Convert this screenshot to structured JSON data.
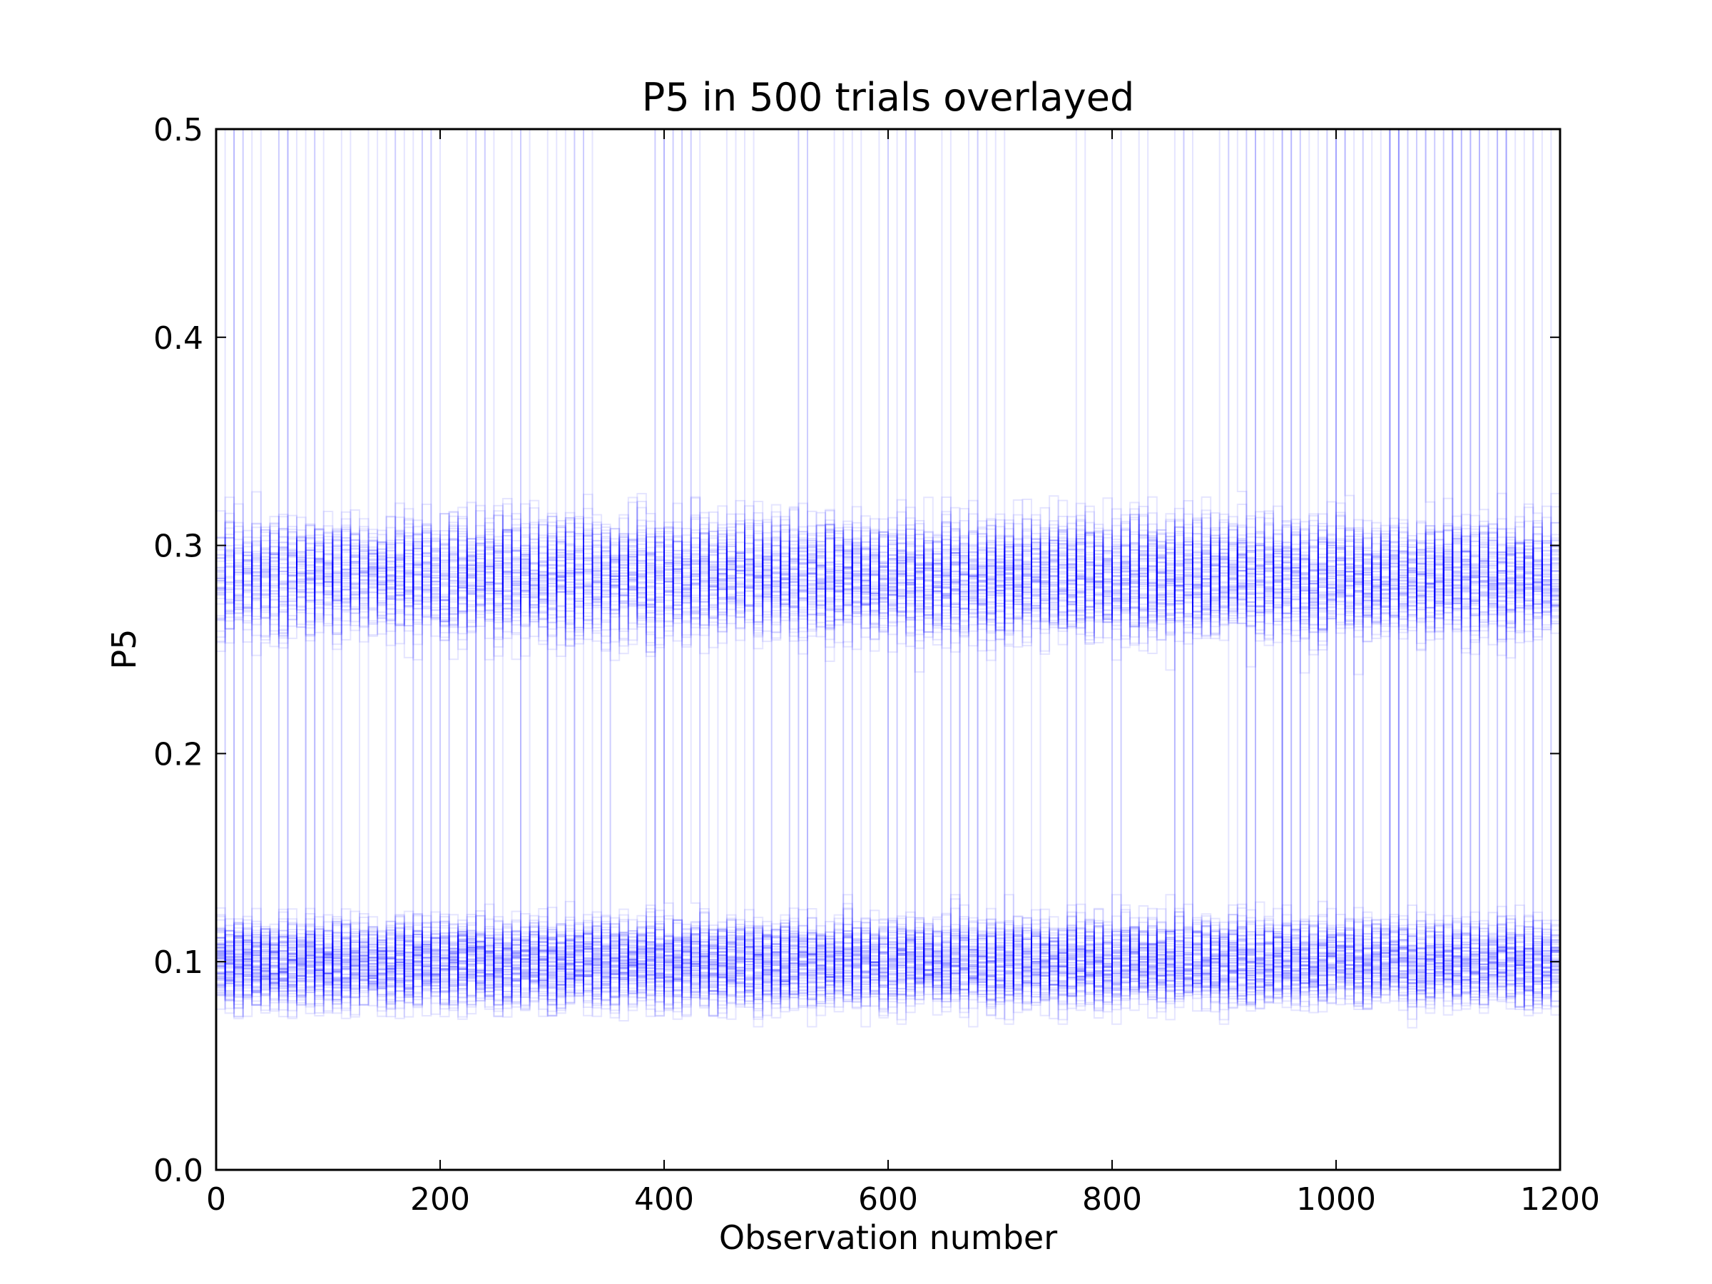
{
  "chart_data": {
    "type": "line",
    "title": "P5 in 500 trials overlayed",
    "xlabel": "Observation number",
    "ylabel": "P5",
    "xlim": [
      0,
      1200
    ],
    "ylim": [
      0.0,
      0.5
    ],
    "xticks": [
      0,
      200,
      400,
      600,
      800,
      1000,
      1200
    ],
    "xtick_labels": [
      "0",
      "200",
      "400",
      "600",
      "800",
      "1000",
      "1200"
    ],
    "yticks": [
      0.0,
      0.1,
      0.2,
      0.3,
      0.4,
      0.5
    ],
    "ytick_labels": [
      "0.0",
      "0.1",
      "0.2",
      "0.3",
      "0.4",
      "0.5"
    ],
    "grid": false,
    "legend": "none",
    "n_trials": 500,
    "drawstyle": "steps",
    "line_color": "#0000ff",
    "line_alpha": 0.1,
    "bands": [
      {
        "center": 0.1,
        "spread_min": 0.04,
        "spread_max": 0.165
      },
      {
        "center": 0.285,
        "spread_min": 0.21,
        "spread_max": 0.375
      }
    ],
    "series_summary": [
      {
        "name": "",
        "x": [
          0,
          100,
          200,
          300,
          400,
          500,
          600,
          700,
          800,
          900,
          1000,
          1100,
          1200
        ],
        "y": [
          0.1,
          0.1,
          0.1,
          0.1,
          0.1,
          0.1,
          0.1,
          0.1,
          0.1,
          0.1,
          0.1,
          0.1,
          0.1
        ]
      },
      {
        "name": "",
        "x": [
          0,
          100,
          200,
          300,
          400,
          500,
          600,
          700,
          800,
          900,
          1000,
          1100,
          1200
        ],
        "y": [
          0.28,
          0.285,
          0.29,
          0.285,
          0.28,
          0.29,
          0.285,
          0.275,
          0.29,
          0.285,
          0.28,
          0.285,
          0.28
        ]
      }
    ]
  }
}
